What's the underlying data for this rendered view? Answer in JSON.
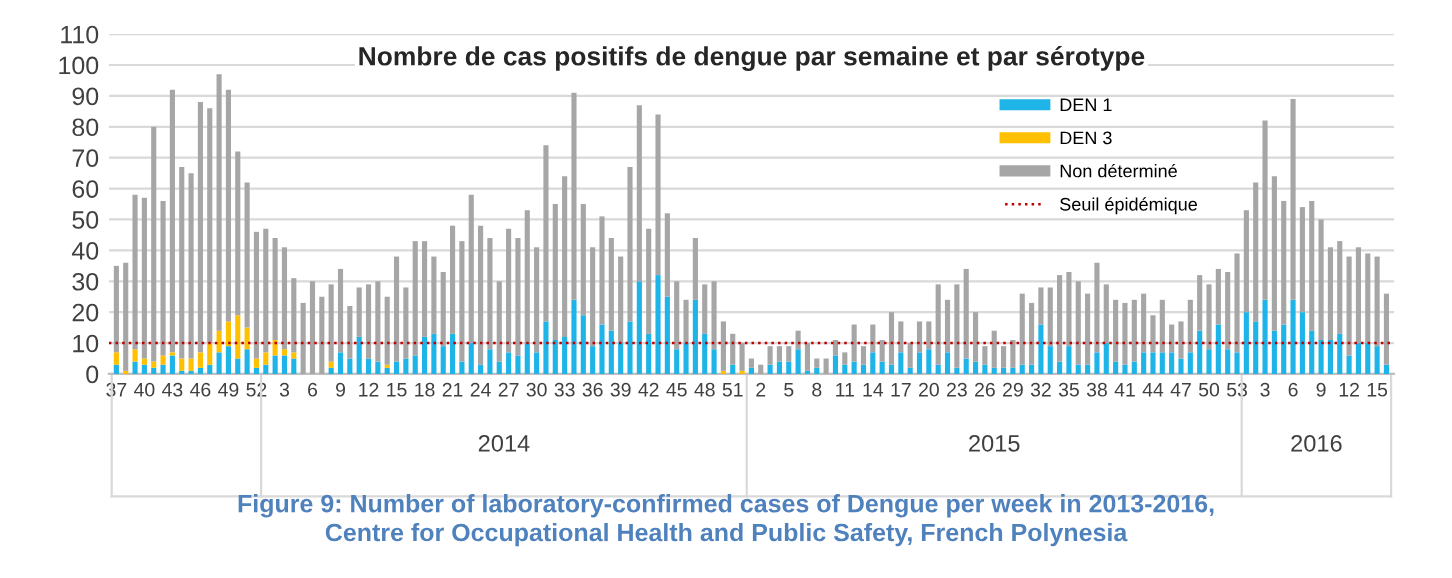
{
  "chart_data": {
    "type": "bar",
    "stacked": true,
    "title": "Nombre de cas positifs de dengue par semaine et par sérotype",
    "categories": [
      "37",
      null,
      null,
      "40",
      null,
      null,
      "43",
      null,
      null,
      "46",
      null,
      null,
      "49",
      null,
      null,
      "52",
      null,
      null,
      "3",
      null,
      null,
      "6",
      null,
      null,
      "9",
      null,
      null,
      "12",
      null,
      null,
      "15",
      null,
      null,
      "18",
      null,
      null,
      "21",
      null,
      null,
      "24",
      null,
      null,
      "27",
      null,
      null,
      "30",
      null,
      null,
      "33",
      null,
      null,
      "36",
      null,
      null,
      "39",
      null,
      null,
      "42",
      null,
      null,
      "45",
      null,
      null,
      "48",
      null,
      null,
      "51",
      null,
      null,
      "2",
      null,
      null,
      "5",
      null,
      null,
      "8",
      null,
      null,
      "11",
      null,
      null,
      "14",
      null,
      null,
      "17",
      null,
      null,
      "20",
      null,
      null,
      "23",
      null,
      null,
      "26",
      null,
      null,
      "29",
      null,
      null,
      "32",
      null,
      null,
      "35",
      null,
      null,
      "38",
      null,
      null,
      "41",
      null,
      null,
      "44",
      null,
      null,
      "47",
      null,
      null,
      "50",
      null,
      null,
      "53",
      null,
      null,
      "3",
      null,
      null,
      "6",
      null,
      null,
      "9",
      null,
      null,
      "12",
      null,
      null,
      "15",
      null
    ],
    "series": [
      {
        "name": "DEN 1",
        "color": "#1fb4e8",
        "values": [
          3,
          0,
          4,
          3,
          2,
          3,
          6,
          1,
          1,
          2,
          3,
          7,
          9,
          5,
          8,
          2,
          3,
          6,
          6,
          5,
          0,
          0,
          0,
          2,
          7,
          5,
          12,
          5,
          4,
          2,
          4,
          5,
          6,
          12,
          13,
          9,
          13,
          4,
          10,
          3,
          8,
          4,
          7,
          6,
          10,
          7,
          17,
          11,
          12,
          24,
          19,
          9,
          16,
          14,
          10,
          17,
          30,
          13,
          32,
          25,
          8,
          10,
          24,
          13,
          8,
          0,
          3,
          0,
          2,
          0,
          3,
          4,
          4,
          8,
          1,
          2,
          0,
          6,
          3,
          4,
          3,
          7,
          4,
          3,
          7,
          2,
          7,
          8,
          3,
          7,
          2,
          5,
          4,
          3,
          2,
          2,
          2,
          3,
          3,
          16,
          9,
          4,
          9,
          3,
          3,
          7,
          10,
          4,
          3,
          4,
          7,
          7,
          7,
          7,
          5,
          7,
          14,
          8,
          16,
          8,
          7,
          20,
          17,
          24,
          14,
          16,
          24,
          20,
          14,
          11,
          11,
          13,
          6,
          10,
          10,
          9,
          3
        ]
      },
      {
        "name": "DEN 3",
        "color": "#ffc000",
        "values": [
          4,
          1,
          4,
          2,
          2,
          3,
          1,
          4,
          4,
          5,
          7,
          7,
          8,
          14,
          7,
          3,
          4,
          5,
          2,
          2,
          0,
          0,
          0,
          2,
          0,
          0,
          0,
          0,
          0,
          1,
          0,
          0,
          0,
          0,
          0,
          0,
          0,
          0,
          0,
          0,
          0,
          0,
          0,
          0,
          0,
          0,
          0,
          0,
          0,
          0,
          0,
          0,
          0,
          0,
          0,
          0,
          0,
          0,
          0,
          0,
          0,
          0,
          0,
          0,
          0,
          1,
          0,
          1,
          0,
          0,
          0,
          0,
          0,
          0,
          0,
          0,
          0,
          0,
          0,
          0,
          0,
          0,
          0,
          0,
          0,
          0,
          0,
          0,
          0,
          0,
          0,
          0,
          0,
          0,
          0,
          0,
          0,
          0,
          0,
          0,
          0,
          0,
          0,
          0,
          0,
          0,
          0,
          0,
          0,
          0,
          0,
          0,
          0,
          0,
          0,
          0,
          0,
          0,
          0,
          0,
          0,
          0,
          0,
          0,
          0,
          0,
          0,
          0,
          0,
          0,
          0,
          0,
          0,
          0,
          0,
          0,
          0
        ]
      },
      {
        "name": "Non déterminé",
        "color": "#a6a6a6",
        "values": [
          28,
          35,
          50,
          52,
          76,
          50,
          85,
          62,
          60,
          81,
          76,
          83,
          75,
          53,
          47,
          41,
          40,
          33,
          33,
          24,
          23,
          30,
          25,
          25,
          27,
          17,
          16,
          24,
          26,
          22,
          34,
          23,
          37,
          31,
          25,
          24,
          35,
          39,
          48,
          45,
          36,
          26,
          40,
          38,
          43,
          34,
          57,
          44,
          52,
          67,
          36,
          32,
          35,
          30,
          28,
          50,
          57,
          34,
          52,
          27,
          22,
          14,
          20,
          16,
          22,
          16,
          10,
          9,
          3,
          3,
          6,
          5,
          5,
          6,
          9,
          3,
          5,
          5,
          4,
          12,
          6,
          9,
          7,
          17,
          10,
          8,
          10,
          9,
          26,
          17,
          27,
          29,
          16,
          6,
          12,
          7,
          9,
          23,
          20,
          12,
          19,
          28,
          24,
          27,
          23,
          29,
          19,
          20,
          20,
          20,
          19,
          12,
          17,
          9,
          12,
          17,
          18,
          21,
          18,
          25,
          32,
          33,
          45,
          58,
          50,
          40,
          65,
          34,
          42,
          39,
          30,
          30,
          32,
          31,
          29,
          29,
          23
        ]
      }
    ],
    "ref_lines": [
      {
        "axis": "y",
        "value": 10,
        "label": "Seuil épidémique",
        "color": "#c00000",
        "line_style": "dotted"
      }
    ],
    "ylim": [
      0,
      110
    ],
    "yticks": [
      0,
      10,
      20,
      30,
      40,
      50,
      60,
      70,
      80,
      90,
      100,
      110
    ],
    "grid": "y",
    "legend": "top right",
    "annotations": [
      "2014",
      "2015",
      "2016",
      "Figure 9: Number of laboratory-confirmed cases of Dengue per week in 2013-2016,\nCentre for Occupational Health and Public Safety, French Polynesia"
    ]
  }
}
